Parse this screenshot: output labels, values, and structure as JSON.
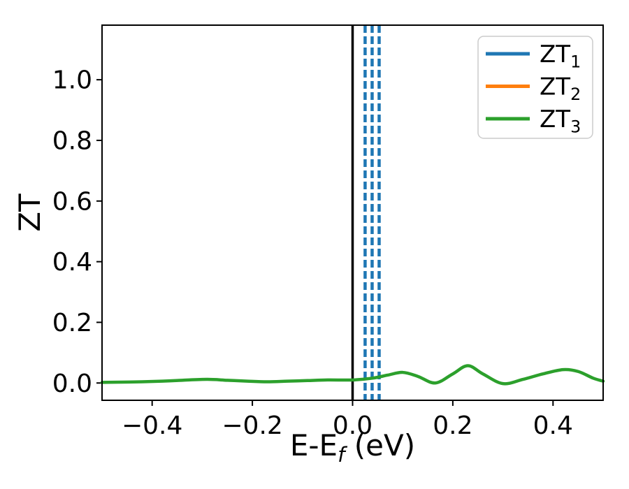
{
  "figure": {
    "background": "#ffffff",
    "text_color": "#000000"
  },
  "chart_data": {
    "type": "line",
    "title": "",
    "xlabel": "E-E_f (eV)",
    "xlabel_parts": [
      {
        "t": "E-E"
      },
      {
        "t": "f",
        "sub": true,
        "italic": true
      },
      {
        "t": " (eV)"
      }
    ],
    "ylabel": "ZT",
    "xlim": [
      -0.5,
      0.5
    ],
    "ylim": [
      -0.057,
      1.18
    ],
    "xticks": {
      "values": [
        -0.4,
        -0.2,
        0.0,
        0.2,
        0.4
      ],
      "labels": [
        "−0.4",
        "−0.2",
        "0.0",
        "0.2",
        "0.4"
      ]
    },
    "yticks": {
      "values": [
        0.0,
        0.2,
        0.4,
        0.6,
        0.8,
        1.0
      ],
      "labels": [
        "0.0",
        "0.2",
        "0.4",
        "0.6",
        "0.8",
        "1.0"
      ]
    },
    "grid": false,
    "legend": {
      "position": "upper right",
      "border_color": "#cccccc",
      "background": "#ffffff",
      "entries": [
        {
          "label": "ZT1",
          "label_parts": [
            {
              "t": "ZT"
            },
            {
              "t": "1",
              "sub": true
            }
          ],
          "color": "#1f77b4"
        },
        {
          "label": "ZT2",
          "label_parts": [
            {
              "t": "ZT"
            },
            {
              "t": "2",
              "sub": true
            }
          ],
          "color": "#ff7f0e"
        },
        {
          "label": "ZT3",
          "label_parts": [
            {
              "t": "ZT"
            },
            {
              "t": "3",
              "sub": true
            }
          ],
          "color": "#2ca02c"
        }
      ]
    },
    "reference_lines": [
      {
        "axis": "vertical",
        "x": 0.0,
        "color": "#000000",
        "style": "solid",
        "width": 3.5,
        "name": "zero-energy-line"
      }
    ],
    "series": [
      {
        "name": "ZT1",
        "color": "#1f77b4",
        "render": "vlines-dashed",
        "vlines_x": [
          0.025,
          0.039,
          0.053
        ],
        "width": 4.5,
        "dash": [
          11,
          5
        ]
      },
      {
        "name": "ZT2",
        "color": "#ff7f0e",
        "render": "line",
        "width": 4.5,
        "points": []
      },
      {
        "name": "ZT3",
        "color": "#2ca02c",
        "render": "line",
        "width": 4.5,
        "points": [
          [
            -0.5,
            0.002
          ],
          [
            -0.46,
            0.003
          ],
          [
            -0.42,
            0.004
          ],
          [
            -0.38,
            0.006
          ],
          [
            -0.34,
            0.009
          ],
          [
            -0.29,
            0.012
          ],
          [
            -0.25,
            0.009
          ],
          [
            -0.21,
            0.006
          ],
          [
            -0.17,
            0.004
          ],
          [
            -0.13,
            0.006
          ],
          [
            -0.09,
            0.008
          ],
          [
            -0.05,
            0.01
          ],
          [
            0.0,
            0.01
          ],
          [
            0.04,
            0.016
          ],
          [
            0.07,
            0.026
          ],
          [
            0.1,
            0.035
          ],
          [
            0.13,
            0.022
          ],
          [
            0.165,
            0.0
          ],
          [
            0.2,
            0.03
          ],
          [
            0.23,
            0.057
          ],
          [
            0.26,
            0.03
          ],
          [
            0.3,
            -0.002
          ],
          [
            0.34,
            0.012
          ],
          [
            0.38,
            0.03
          ],
          [
            0.42,
            0.044
          ],
          [
            0.45,
            0.038
          ],
          [
            0.48,
            0.016
          ],
          [
            0.5,
            0.006
          ]
        ]
      }
    ]
  }
}
